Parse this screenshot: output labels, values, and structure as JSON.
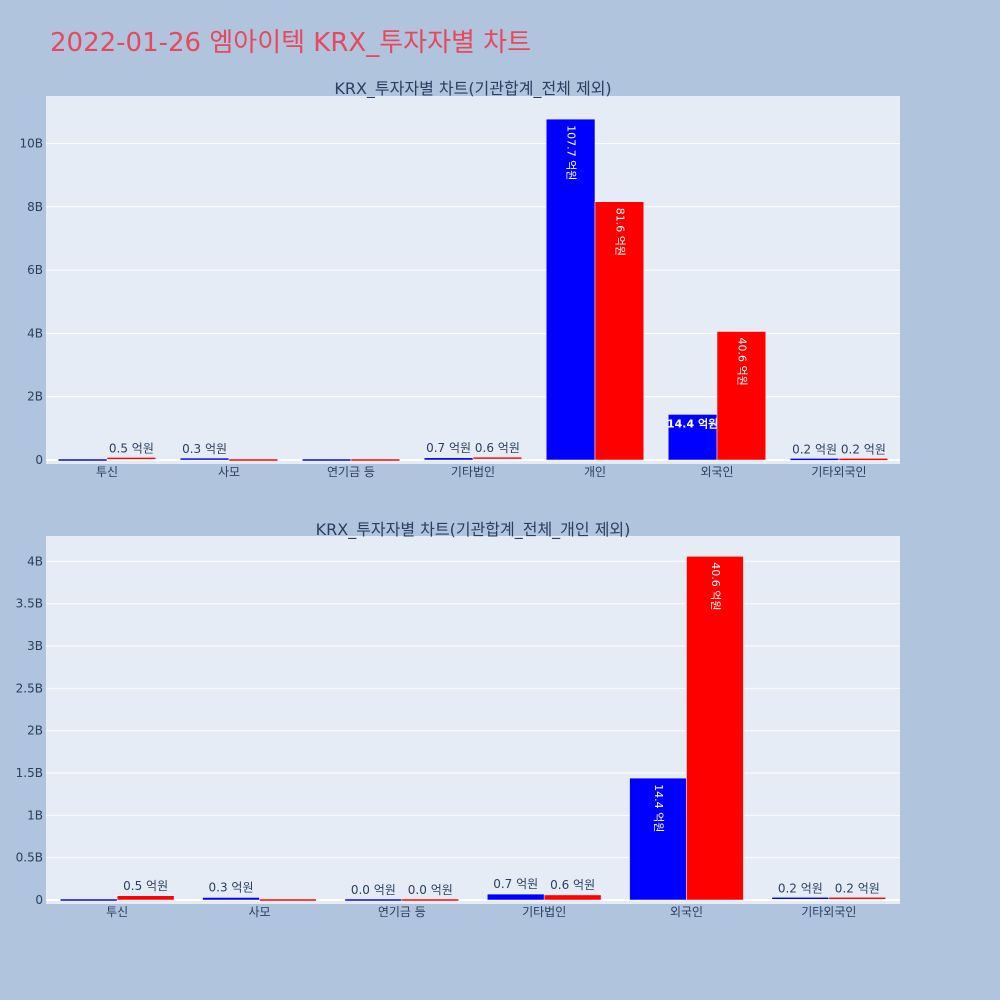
{
  "page": {
    "title": "2022-01-26 엠아이텍 KRX_투자자별 차트"
  },
  "colors": {
    "buy": "#0000ff",
    "sell": "#ff0000",
    "page_bg": "#b0c4de",
    "plot_bg": "#e5ecf6"
  },
  "chart_data": [
    {
      "type": "bar",
      "title": "KRX_투자자별 차트(기관합계_전체 제외)",
      "categories": [
        "투신",
        "사모",
        "연기금 등",
        "기타법인",
        "개인",
        "외국인",
        "기타외국인"
      ],
      "series": [
        {
          "color": "#0000ff",
          "values": [
            0,
            30000000,
            0,
            70000000,
            10770000000,
            1440000000,
            20000000
          ],
          "labels": [
            "",
            "0.3 억원",
            "",
            "0.7 억원",
            "107.7 억원",
            "14.4 억원",
            "0.2 억원"
          ]
        },
        {
          "color": "#ff0000",
          "values": [
            50000000,
            0,
            0,
            60000000,
            8160000000,
            4060000000,
            20000000
          ],
          "labels": [
            "0.5 억원",
            "",
            "",
            "0.6 억원",
            "81.6 억원",
            "40.6 억원",
            "0.2 억원"
          ]
        }
      ],
      "ylim": [
        0,
        11500000000
      ],
      "yticks": [
        0,
        2000000000,
        4000000000,
        6000000000,
        8000000000,
        10000000000
      ],
      "ytick_labels": [
        "0",
        "2B",
        "4B",
        "6B",
        "8B",
        "10B"
      ],
      "grid": true,
      "xlabel": "",
      "ylabel": ""
    },
    {
      "type": "bar",
      "title": "KRX_투자자별 차트(기관합계_전체_개인 제외)",
      "categories": [
        "투신",
        "사모",
        "연기금 등",
        "기타법인",
        "외국인",
        "기타외국인"
      ],
      "series": [
        {
          "color": "#0000ff",
          "values": [
            0,
            30000000,
            0,
            70000000,
            1440000000,
            20000000
          ],
          "labels": [
            "",
            "0.3 억원",
            "0.0 억원",
            "0.7 억원",
            "14.4 억원",
            "0.2 억원"
          ]
        },
        {
          "color": "#ff0000",
          "values": [
            50000000,
            0,
            0,
            60000000,
            4060000000,
            20000000
          ],
          "labels": [
            "0.5 억원",
            "",
            "0.0 억원",
            "0.6 억원",
            "40.6 억원",
            "0.2 억원"
          ]
        }
      ],
      "ylim": [
        0,
        4300000000
      ],
      "yticks": [
        0,
        500000000,
        1000000000,
        1500000000,
        2000000000,
        2500000000,
        3000000000,
        3500000000,
        4000000000
      ],
      "ytick_labels": [
        "0",
        "0.5B",
        "1B",
        "1.5B",
        "2B",
        "2.5B",
        "3B",
        "3.5B",
        "4B"
      ],
      "grid": true,
      "xlabel": "",
      "ylabel": ""
    }
  ]
}
